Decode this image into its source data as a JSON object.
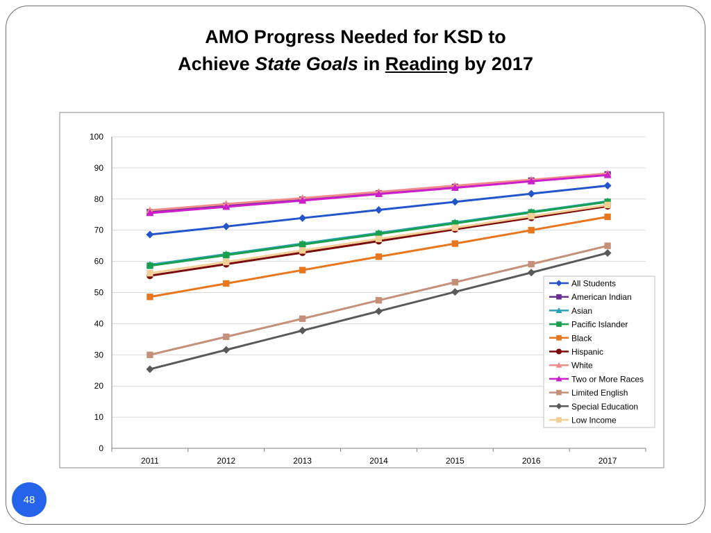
{
  "slide": {
    "title_line1": "AMO Progress Needed for KSD to",
    "title_line2_a": "Achieve ",
    "title_line2_b": "State Goals",
    "title_line2_c": " in ",
    "title_line2_d": "Reading",
    "title_line2_e": " by 2017",
    "page_number": "48"
  },
  "chart_data": {
    "type": "line",
    "title": "AMO Progress Needed for KSD to Achieve State Goals in Reading by 2017",
    "xlabel": "",
    "ylabel": "",
    "categories": [
      "2011",
      "2012",
      "2013",
      "2014",
      "2015",
      "2016",
      "2017"
    ],
    "ylim": [
      0,
      100
    ],
    "yticks": [
      0,
      10,
      20,
      30,
      40,
      50,
      60,
      70,
      80,
      90,
      100
    ],
    "grid": "horizontal",
    "legend_position": "right",
    "series": [
      {
        "name": "All Students",
        "color": "#2255cc",
        "marker": "diamond",
        "values": [
          68.6,
          71.2,
          73.9,
          76.5,
          79.1,
          81.7,
          84.3
        ]
      },
      {
        "name": "American Indian",
        "color": "#6a2f8f",
        "marker": "square",
        "values": [
          75.8,
          77.8,
          79.8,
          81.8,
          83.9,
          85.9,
          87.9
        ]
      },
      {
        "name": "Asian",
        "color": "#2aa0b8",
        "marker": "triangle",
        "values": [
          58.9,
          62.3,
          65.7,
          69.1,
          72.5,
          75.9,
          79.3
        ]
      },
      {
        "name": "Pacific Islander",
        "color": "#18a050",
        "marker": "square",
        "values": [
          58.6,
          62.0,
          65.4,
          68.8,
          72.2,
          75.7,
          79.1
        ]
      },
      {
        "name": "Black",
        "color": "#e8761e",
        "marker": "square",
        "values": [
          48.6,
          52.9,
          57.2,
          61.5,
          65.7,
          70.0,
          74.3
        ]
      },
      {
        "name": "Hispanic",
        "color": "#7a0a0a",
        "marker": "circle",
        "values": [
          55.4,
          59.1,
          62.8,
          66.5,
          70.3,
          74.0,
          77.7
        ]
      },
      {
        "name": "White",
        "color": "#f08c8c",
        "marker": "triangle",
        "values": [
          76.4,
          78.4,
          80.3,
          82.3,
          84.3,
          86.2,
          88.2
        ]
      },
      {
        "name": "Two or More Races",
        "color": "#cc1fcc",
        "marker": "triangle",
        "values": [
          75.5,
          77.5,
          79.5,
          81.6,
          83.6,
          85.7,
          87.7
        ]
      },
      {
        "name": "Limited English",
        "color": "#c4907a",
        "marker": "square",
        "values": [
          30.0,
          35.8,
          41.6,
          47.5,
          53.3,
          59.1,
          65.0
        ]
      },
      {
        "name": "Special Education",
        "color": "#595959",
        "marker": "diamond",
        "values": [
          25.4,
          31.6,
          37.8,
          44.0,
          50.2,
          56.4,
          62.7
        ]
      },
      {
        "name": "Low Income",
        "color": "#f2cf96",
        "marker": "square",
        "values": [
          56.2,
          59.8,
          63.5,
          67.2,
          70.8,
          74.5,
          78.1
        ]
      }
    ]
  }
}
